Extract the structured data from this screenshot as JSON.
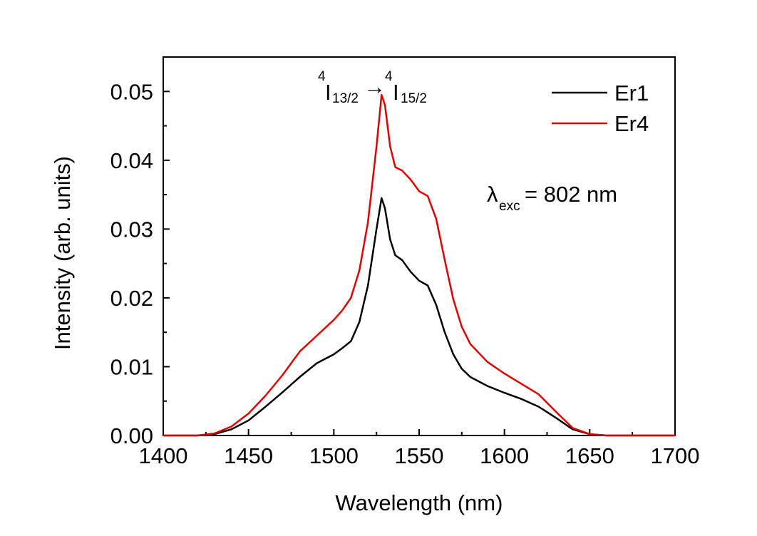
{
  "chart_data": {
    "type": "line",
    "xlabel": "Wavelength (nm)",
    "ylabel": "Intensity (arb. units)",
    "xlim": [
      1400,
      1700
    ],
    "ylim": [
      0,
      0.055
    ],
    "x_ticks": [
      1400,
      1450,
      1500,
      1550,
      1600,
      1650,
      1700
    ],
    "x_tick_labels": [
      "1400",
      "1450",
      "1500",
      "1550",
      "1600",
      "1650",
      "1700"
    ],
    "y_ticks": [
      0,
      0.01,
      0.02,
      0.03,
      0.04,
      0.05
    ],
    "y_tick_labels": [
      "0.00",
      "0.01",
      "0.02",
      "0.03",
      "0.04",
      "0.05"
    ],
    "grid": false,
    "legend_position": "top-right",
    "annotations": {
      "transition": {
        "sup1": "4",
        "base1": "I",
        "sub1": "13/2",
        "arrow": "→",
        "sup2": "4",
        "base2": "I",
        "sub2": "15/2"
      },
      "excitation": {
        "symbol": "λ",
        "sub": "exc",
        "text": "= 802 nm"
      }
    },
    "series": [
      {
        "name": "Er1",
        "color": "#000000",
        "x": [
          1400,
          1420,
          1430,
          1440,
          1450,
          1460,
          1470,
          1480,
          1490,
          1500,
          1505,
          1510,
          1515,
          1520,
          1525,
          1528,
          1530,
          1533,
          1536,
          1540,
          1545,
          1550,
          1555,
          1560,
          1565,
          1570,
          1575,
          1580,
          1590,
          1600,
          1610,
          1620,
          1630,
          1640,
          1650,
          1660,
          1670,
          1688,
          1700
        ],
        "y": [
          0,
          0,
          0.0002,
          0.0009,
          0.0022,
          0.0042,
          0.0063,
          0.0085,
          0.0105,
          0.0118,
          0.0127,
          0.0137,
          0.0165,
          0.0218,
          0.03,
          0.0345,
          0.033,
          0.0285,
          0.0262,
          0.0255,
          0.0238,
          0.0225,
          0.0218,
          0.019,
          0.015,
          0.0118,
          0.0097,
          0.0085,
          0.0072,
          0.0062,
          0.0053,
          0.0042,
          0.0026,
          0.0009,
          0.0002,
          0,
          0,
          0,
          0
        ]
      },
      {
        "name": "Er4",
        "color": "#e00000",
        "x": [
          1400,
          1420,
          1430,
          1440,
          1450,
          1460,
          1470,
          1480,
          1490,
          1500,
          1505,
          1510,
          1515,
          1520,
          1525,
          1528,
          1530,
          1533,
          1536,
          1540,
          1545,
          1550,
          1555,
          1560,
          1565,
          1570,
          1575,
          1580,
          1590,
          1600,
          1610,
          1620,
          1630,
          1640,
          1650,
          1660,
          1670,
          1700
        ],
        "y": [
          0,
          0,
          0.0003,
          0.0013,
          0.0032,
          0.0058,
          0.0088,
          0.0122,
          0.0145,
          0.0168,
          0.0182,
          0.02,
          0.024,
          0.031,
          0.042,
          0.0495,
          0.048,
          0.042,
          0.039,
          0.0385,
          0.0372,
          0.0355,
          0.0348,
          0.0315,
          0.0255,
          0.0198,
          0.0158,
          0.0133,
          0.0107,
          0.009,
          0.0075,
          0.006,
          0.0035,
          0.0011,
          0.0002,
          0,
          0,
          0
        ]
      }
    ]
  }
}
